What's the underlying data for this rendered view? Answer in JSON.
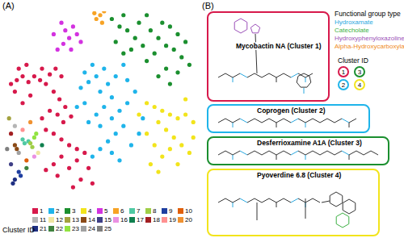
{
  "chart_data": {
    "type": "scatter",
    "annotations": [
      "(A)"
    ],
    "legend_title": "Cluster ID",
    "xlim": [
      0,
      100
    ],
    "ylim": [
      0,
      100
    ],
    "tick_labels": false,
    "grid": false,
    "marker": "circle",
    "series": [
      {
        "name": "1",
        "color": "#d7194b",
        "points": [
          [
            4,
            62
          ],
          [
            7,
            64
          ],
          [
            10,
            66
          ],
          [
            13,
            63
          ],
          [
            16,
            66
          ],
          [
            19,
            64
          ],
          [
            22,
            62
          ],
          [
            8,
            70
          ],
          [
            12,
            72
          ],
          [
            6,
            58
          ],
          [
            20,
            70
          ],
          [
            24,
            67
          ],
          [
            27,
            70
          ],
          [
            30,
            66
          ],
          [
            26,
            58
          ],
          [
            29,
            54
          ],
          [
            32,
            50
          ],
          [
            28,
            46
          ],
          [
            31,
            42
          ],
          [
            35,
            45
          ],
          [
            24,
            48
          ],
          [
            20,
            44
          ],
          [
            22,
            38
          ],
          [
            26,
            36
          ],
          [
            30,
            33
          ],
          [
            34,
            30
          ],
          [
            38,
            28
          ],
          [
            30,
            24
          ],
          [
            26,
            20
          ],
          [
            22,
            17
          ],
          [
            28,
            14
          ],
          [
            34,
            18
          ],
          [
            38,
            22
          ],
          [
            42,
            26
          ],
          [
            44,
            18
          ],
          [
            40,
            12
          ],
          [
            36,
            8
          ],
          [
            46,
            10
          ],
          [
            14,
            56
          ],
          [
            10,
            52
          ]
        ]
      },
      {
        "name": "2",
        "color": "#1fb4ea",
        "points": [
          [
            40,
            60
          ],
          [
            44,
            63
          ],
          [
            48,
            66
          ],
          [
            52,
            70
          ],
          [
            46,
            72
          ],
          [
            42,
            68
          ],
          [
            50,
            58
          ],
          [
            54,
            62
          ],
          [
            58,
            66
          ],
          [
            56,
            55
          ],
          [
            52,
            50
          ],
          [
            48,
            46
          ],
          [
            44,
            42
          ],
          [
            50,
            40
          ],
          [
            56,
            44
          ],
          [
            60,
            48
          ],
          [
            64,
            52
          ],
          [
            62,
            40
          ],
          [
            58,
            36
          ],
          [
            54,
            32
          ],
          [
            50,
            28
          ],
          [
            46,
            24
          ],
          [
            56,
            26
          ],
          [
            60,
            22
          ],
          [
            66,
            30
          ],
          [
            70,
            36
          ],
          [
            72,
            44
          ],
          [
            68,
            58
          ],
          [
            64,
            64
          ],
          [
            62,
            72
          ],
          [
            38,
            50
          ],
          [
            42,
            52
          ]
        ]
      },
      {
        "name": "3",
        "color": "#1b8f2f",
        "points": [
          [
            56,
            96
          ],
          [
            60,
            92
          ],
          [
            64,
            90
          ],
          [
            62,
            98
          ],
          [
            68,
            86
          ],
          [
            72,
            82
          ],
          [
            70,
            94
          ],
          [
            74,
            98
          ],
          [
            76,
            90
          ],
          [
            80,
            86
          ],
          [
            84,
            82
          ],
          [
            78,
            78
          ],
          [
            74,
            74
          ],
          [
            82,
            94
          ],
          [
            86,
            92
          ],
          [
            90,
            88
          ],
          [
            88,
            80
          ],
          [
            92,
            76
          ],
          [
            94,
            84
          ],
          [
            96,
            72
          ],
          [
            90,
            68
          ],
          [
            84,
            70
          ],
          [
            80,
            66
          ],
          [
            86,
            62
          ],
          [
            66,
            80
          ],
          [
            62,
            78
          ],
          [
            58,
            84
          ]
        ]
      },
      {
        "name": "4",
        "color": "#f2e41c",
        "points": [
          [
            74,
            52
          ],
          [
            78,
            50
          ],
          [
            82,
            48
          ],
          [
            86,
            46
          ],
          [
            90,
            44
          ],
          [
            94,
            46
          ],
          [
            98,
            42
          ],
          [
            80,
            42
          ],
          [
            84,
            38
          ],
          [
            88,
            34
          ],
          [
            92,
            30
          ],
          [
            96,
            26
          ],
          [
            98,
            34
          ],
          [
            86,
            28
          ],
          [
            82,
            24
          ],
          [
            78,
            30
          ],
          [
            74,
            36
          ],
          [
            76,
            20
          ],
          [
            80,
            16
          ],
          [
            90,
            20
          ],
          [
            94,
            54
          ],
          [
            70,
            46
          ]
        ]
      },
      {
        "name": "5",
        "color": "#d332e0",
        "points": [
          [
            28,
            80
          ],
          [
            31,
            83
          ],
          [
            34,
            86
          ],
          [
            32,
            90
          ],
          [
            36,
            92
          ],
          [
            38,
            88
          ],
          [
            40,
            84
          ],
          [
            35,
            80
          ],
          [
            30,
            94
          ],
          [
            26,
            88
          ]
        ]
      },
      {
        "name": "6",
        "color": "#f7a325",
        "points": [
          [
            48,
            96
          ],
          [
            50,
            98
          ],
          [
            52,
            100
          ],
          [
            47,
            99
          ],
          [
            51,
            94
          ]
        ]
      },
      {
        "name": "7",
        "color": "#4fc9a3",
        "points": [
          [
            10,
            33
          ],
          [
            11,
            31
          ],
          [
            13,
            32
          ]
        ]
      },
      {
        "name": "8",
        "color": "#9fce47",
        "points": [
          [
            14,
            31
          ],
          [
            15,
            29
          ]
        ]
      },
      {
        "name": "9",
        "color": "#1f3fa0",
        "points": [
          [
            8,
            16
          ],
          [
            9,
            14
          ]
        ]
      },
      {
        "name": "10",
        "color": "#e05f0a",
        "points": [
          [
            12,
            22
          ]
        ]
      },
      {
        "name": "11",
        "color": "#b5b5b5",
        "points": [
          [
            6,
            40
          ]
        ]
      },
      {
        "name": "12",
        "color": "#efe6a2",
        "points": [
          [
            18,
            26
          ]
        ]
      },
      {
        "name": "13",
        "color": "#a3a23f",
        "points": [
          [
            3,
            44
          ]
        ]
      },
      {
        "name": "14",
        "color": "#8b4a16",
        "points": [
          [
            6,
            30
          ],
          [
            7,
            28
          ]
        ]
      },
      {
        "name": "15",
        "color": "#3f3f86",
        "points": [
          [
            4,
            20
          ]
        ]
      },
      {
        "name": "16",
        "color": "#ea91e2",
        "points": [
          [
            16,
            24
          ]
        ]
      },
      {
        "name": "17",
        "color": "#10804f",
        "points": [
          [
            20,
            30
          ]
        ]
      },
      {
        "name": "18",
        "color": "#a21f22",
        "points": [
          [
            4,
            36
          ]
        ]
      },
      {
        "name": "19",
        "color": "#ff9191",
        "points": [
          [
            10,
            38
          ]
        ]
      },
      {
        "name": "20",
        "color": "#f09232",
        "points": [
          [
            14,
            42
          ]
        ]
      },
      {
        "name": "21",
        "color": "#1f2f82",
        "points": [
          [
            6,
            12
          ],
          [
            5,
            10
          ]
        ]
      },
      {
        "name": "22",
        "color": "#3f823f",
        "points": [
          [
            12,
            18
          ]
        ]
      },
      {
        "name": "23",
        "color": "#92e341",
        "points": [
          [
            16,
            34
          ],
          [
            17,
            36
          ]
        ]
      },
      {
        "name": "24",
        "color": "#a1a1a1",
        "points": [
          [
            8,
            26
          ]
        ]
      },
      {
        "name": "25",
        "color": "#7f7f7f",
        "points": [
          [
            2,
            28
          ]
        ]
      }
    ]
  },
  "panel_b": {
    "label": "(B)",
    "functional_group_legend": {
      "title": "Functional group type",
      "items": [
        {
          "label": "Hydroxamate",
          "color": "#29a8e0"
        },
        {
          "label": "Catecholate",
          "color": "#3cb043"
        },
        {
          "label": "Hydroxyphenyloxazoline",
          "color": "#9b4fb8"
        },
        {
          "label": "Alpha-Hydroxycarboxylate",
          "color": "#f08a24"
        }
      ]
    },
    "cluster_legend": {
      "title": "Cluster ID",
      "items": [
        {
          "id": "1",
          "color": "#d7194b"
        },
        {
          "id": "3",
          "color": "#1b8f2f"
        },
        {
          "id": "2",
          "color": "#1fb4ea"
        },
        {
          "id": "4",
          "color": "#f2e41c"
        }
      ]
    },
    "structures": [
      {
        "label": "Mycobactin NA (Cluster 1)",
        "color": "#d7194b"
      },
      {
        "label": "Coprogen (Cluster 2)",
        "color": "#1fb4ea"
      },
      {
        "label": "Desferrioxamine A1A (Cluster 3)",
        "color": "#1b8f2f"
      },
      {
        "label": "Pyoverdine 6.8 (Cluster 4)",
        "color": "#f2e41c"
      }
    ]
  }
}
